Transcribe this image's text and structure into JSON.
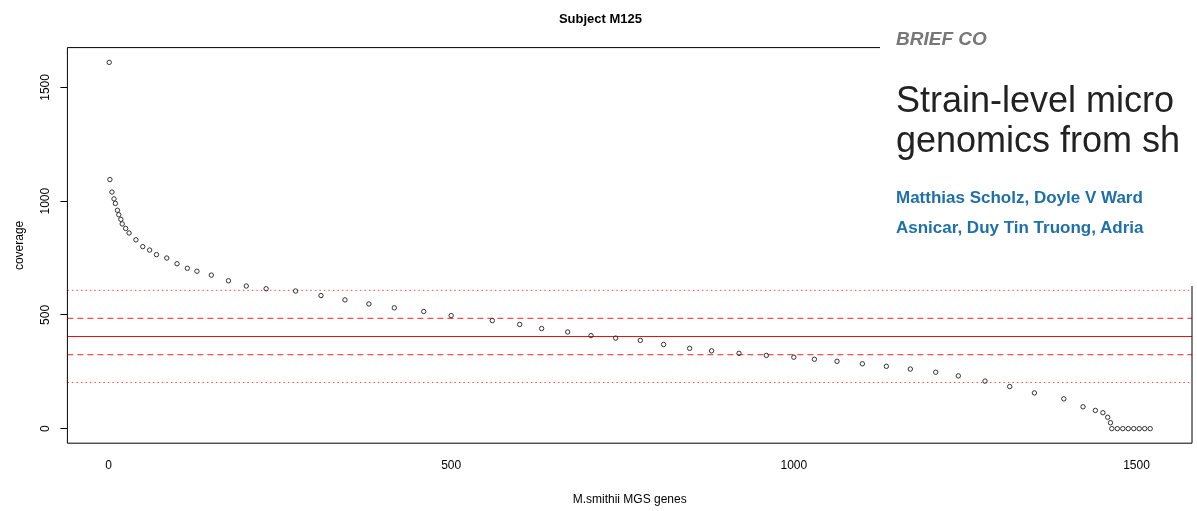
{
  "chart_data": {
    "type": "scatter",
    "title": "Subject M125",
    "xlabel": "M.smithii MGS genes",
    "ylabel": "coverage",
    "annotations": [
      "BRIEF CO",
      "Strain-level micro",
      "genomics from sh",
      "Matthias Scholz, Doyle V Ward",
      "Asnicar, Duy Tin Truong, Adria"
    ],
    "xlim": [
      -60,
      1581
    ],
    "ylim": [
      -64,
      1675
    ],
    "xticks": [
      0,
      500,
      1000,
      1500
    ],
    "yticks": [
      0,
      500,
      1000,
      1500
    ],
    "marker": "circle",
    "grid": false,
    "legend": false,
    "series": [
      {
        "color": "#333333",
        "x": [
          1,
          2,
          5,
          8,
          10,
          13,
          15,
          18,
          20,
          25,
          30,
          40,
          50,
          60,
          70,
          85,
          100,
          115,
          129,
          150,
          175,
          201,
          230,
          273,
          310,
          345,
          380,
          417,
          460,
          500,
          560,
          600,
          632,
          670,
          704,
          740,
          776,
          810,
          848,
          880,
          920,
          960,
          1000,
          1030,
          1063,
          1100,
          1135,
          1170,
          1207,
          1240,
          1279,
          1315,
          1351,
          1394,
          1422,
          1440,
          1451,
          1458,
          1462,
          1464,
          1472,
          1480,
          1488,
          1496,
          1504,
          1512,
          1520
        ],
        "values": [
          1610,
          1095,
          1040,
          1010,
          990,
          960,
          940,
          920,
          900,
          880,
          860,
          830,
          800,
          785,
          765,
          750,
          725,
          705,
          692,
          675,
          650,
          627,
          615,
          605,
          585,
          566,
          548,
          531,
          515,
          497,
          475,
          458,
          440,
          425,
          409,
          398,
          388,
          370,
          353,
          342,
          331,
          322,
          314,
          305,
          296,
          285,
          274,
          262,
          248,
          232,
          209,
          185,
          157,
          131,
          96,
          80,
          70,
          50,
          26,
          0,
          0,
          0,
          0,
          0,
          0,
          0,
          0
        ]
      }
    ],
    "ref_lines": [
      {
        "axis": "y",
        "value": 608,
        "color": "#ff4444",
        "line_style": "dotted"
      },
      {
        "axis": "y",
        "value": 485,
        "color": "#ff2222",
        "line_style": "dashed"
      },
      {
        "axis": "y",
        "value": 405,
        "color": "#ee1111",
        "line_style": "solid"
      },
      {
        "axis": "y",
        "value": 325,
        "color": "#ff2222",
        "line_style": "dashed"
      },
      {
        "axis": "y",
        "value": 203,
        "color": "#ff4444",
        "line_style": "dotted"
      }
    ]
  }
}
